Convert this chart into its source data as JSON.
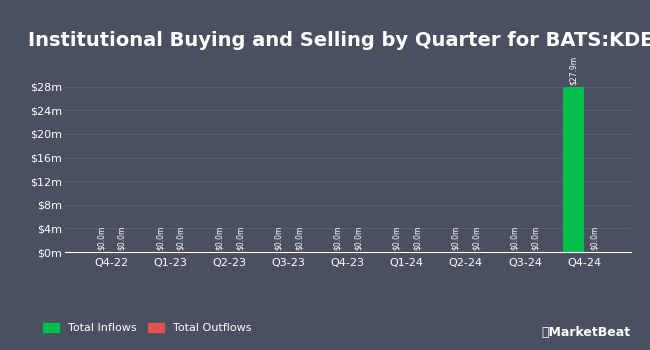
{
  "title": "Institutional Buying and Selling by Quarter for BATS:KDEC",
  "quarters": [
    "Q4-22",
    "Q1-23",
    "Q2-23",
    "Q3-23",
    "Q4-23",
    "Q1-24",
    "Q2-24",
    "Q3-24",
    "Q4-24"
  ],
  "inflows": [
    0.0,
    0.0,
    0.0,
    0.0,
    0.0,
    0.0,
    0.0,
    0.0,
    27.9
  ],
  "outflows": [
    0.0,
    0.0,
    0.0,
    0.0,
    0.0,
    0.0,
    0.0,
    0.0,
    0.0
  ],
  "inflow_color": "#00c04b",
  "outflow_color": "#e05252",
  "background_color": "#4a5060",
  "text_color": "#ffffff",
  "grid_color": "#5a6070",
  "bar_width": 0.35,
  "ylim": [
    0,
    32
  ],
  "yticks": [
    0,
    4,
    8,
    12,
    16,
    20,
    24,
    28
  ],
  "ytick_labels": [
    "$0m",
    "$4m",
    "$8m",
    "$12m",
    "$16m",
    "$20m",
    "$24m",
    "$28m"
  ],
  "title_fontsize": 14,
  "label_fontsize": 5.5,
  "tick_fontsize": 8,
  "legend_inflow_label": "Total Inflows",
  "legend_outflow_label": "Total Outflows"
}
